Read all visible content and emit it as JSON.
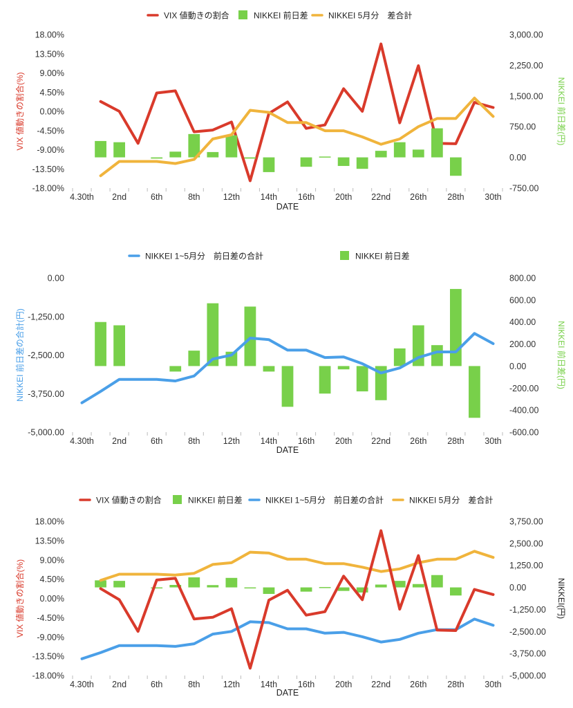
{
  "colors": {
    "vix": "#d93a2b",
    "diff": "#78d04a",
    "cum": "#4a9fe8",
    "total5": "#f0b43c",
    "axis_text": "#333333",
    "tick_line": "#bbbbbb"
  },
  "x_tick_labels": [
    "4.30th",
    "2nd",
    "6th",
    "8th",
    "12th",
    "14th",
    "16th",
    "20th",
    "22nd",
    "26th",
    "28th",
    "30th"
  ],
  "chart_data": [
    {
      "type": "line",
      "legend": [
        "VIX 値動きの割合",
        "NIKKEI 前日差",
        "NIKKEI 5月分　差合計"
      ],
      "xlabel": "DATE",
      "ylabel_left": "VIX 値動きの割合(%)",
      "ylabel_right": "NIKKEI 前日差(円)",
      "yticks_left": [
        "18.00%",
        "13.50%",
        "9.00%",
        "4.50%",
        "0.00%",
        "-4.50%",
        "-9.00%",
        "-13.50%",
        "-18.00%"
      ],
      "yticks_right": [
        "3,000.00",
        "2,250.00",
        "1,500.00",
        "750.00",
        "0.00",
        "-750.00"
      ],
      "ylim_left": [
        -18,
        18
      ],
      "ylim_right": [
        -750,
        3000
      ],
      "x_count": 23,
      "series": [
        {
          "name": "VIX 値動きの割合",
          "kind": "line",
          "axis": "left",
          "color_key": "vix",
          "values": [
            null,
            2.3,
            0,
            -7.5,
            4.3,
            4.8,
            -4.8,
            -4.4,
            -2.5,
            -16.3,
            -0.5,
            2.2,
            -4,
            -3.2,
            5.3,
            0,
            15.8,
            -2.7,
            10.7,
            -7.5,
            -7.6,
            2.1,
            0.9
          ]
        },
        {
          "name": "NIKKEI 前日差",
          "kind": "bar",
          "axis": "right",
          "color_key": "diff",
          "values": [
            null,
            400,
            370,
            null,
            -30,
            140,
            570,
            130,
            540,
            -30,
            -360,
            null,
            -230,
            20,
            -210,
            -280,
            160,
            370,
            190,
            710,
            -450,
            null,
            null
          ]
        },
        {
          "name": "NIKKEI 5月分　差合計",
          "kind": "line",
          "axis": "right",
          "color_key": "total5",
          "values": [
            null,
            -450,
            -100,
            -100,
            -100,
            -150,
            -50,
            450,
            550,
            1150,
            1100,
            850,
            850,
            650,
            650,
            500,
            320,
            450,
            750,
            950,
            950,
            1450,
            1000
          ]
        }
      ]
    },
    {
      "type": "line",
      "legend": [
        "NIKKEI 1~5月分　前日差の合計",
        "NIKKEI 前日差"
      ],
      "xlabel": "DATE",
      "ylabel_left": "NIKKEI 前日差の合計(円)",
      "ylabel_right": "NIKKEI 前日差(円)",
      "yticks_left": [
        "0.00",
        "-1,250.00",
        "-2,500.00",
        "-3,750.00",
        "-5,000.00"
      ],
      "yticks_right": [
        "800.00",
        "600.00",
        "400.00",
        "200.00",
        "0.00",
        "-200.00",
        "-400.00",
        "-600.00"
      ],
      "ylim_left": [
        -5000,
        0
      ],
      "ylim_right": [
        -600,
        800
      ],
      "x_count": 23,
      "series": [
        {
          "name": "NIKKEI 前日差",
          "kind": "bar",
          "axis": "right",
          "color_key": "diff",
          "values": [
            null,
            400,
            370,
            null,
            null,
            -50,
            140,
            570,
            130,
            540,
            -50,
            -370,
            null,
            -250,
            -30,
            -230,
            -310,
            160,
            370,
            190,
            700,
            -470,
            null
          ]
        },
        {
          "name": "NIKKEI 1~5月分　前日差の合計",
          "kind": "line",
          "axis": "left",
          "color_key": "cum",
          "values": [
            -4050,
            -3680,
            -3290,
            -3290,
            -3290,
            -3340,
            -3180,
            -2630,
            -2500,
            -1950,
            -2000,
            -2340,
            -2340,
            -2580,
            -2560,
            -2780,
            -3080,
            -2920,
            -2580,
            -2400,
            -2400,
            -1800,
            -2130
          ]
        }
      ]
    },
    {
      "type": "line",
      "legend": [
        "VIX 値動きの割合",
        "NIKKEI 前日差",
        "NIKKEI 1~5月分　前日差の合計",
        "NIKKEI 5月分　差合計"
      ],
      "xlabel": "DATE",
      "ylabel_left": "VIX 値動きの割合(%)",
      "ylabel_right": "NIKKEI(円)",
      "yticks_left": [
        "18.00%",
        "13.50%",
        "9.00%",
        "4.50%",
        "0.00%",
        "-4.50%",
        "-9.00%",
        "-13.50%",
        "-18.00%"
      ],
      "yticks_right": [
        "3,750.00",
        "2,500.00",
        "1,250.00",
        "0.00",
        "-1,250.00",
        "-2,500.00",
        "-3,750.00",
        "-5,000.00"
      ],
      "ylim_left": [
        -18,
        18
      ],
      "ylim_right": [
        -5000,
        3750
      ],
      "x_count": 23,
      "series": [
        {
          "name": "NIKKEI 前日差",
          "kind": "bar",
          "axis": "right",
          "color_key": "diff",
          "values": [
            null,
            400,
            370,
            null,
            -40,
            140,
            570,
            130,
            540,
            -50,
            -370,
            null,
            -240,
            20,
            -200,
            -290,
            160,
            370,
            190,
            700,
            -460,
            null,
            null
          ]
        },
        {
          "name": "NIKKEI 5月分　差合計",
          "kind": "line",
          "axis": "right",
          "color_key": "total5",
          "values": [
            null,
            400,
            750,
            750,
            750,
            700,
            800,
            1300,
            1400,
            2000,
            1950,
            1600,
            1600,
            1350,
            1350,
            1150,
            900,
            1050,
            1400,
            1600,
            1600,
            2050,
            1700
          ]
        },
        {
          "name": "NIKKEI 1~5月分　前日差の合計",
          "kind": "line",
          "axis": "right",
          "color_key": "cum",
          "values": [
            -4050,
            -3700,
            -3300,
            -3300,
            -3300,
            -3350,
            -3200,
            -2650,
            -2500,
            -1950,
            -2000,
            -2350,
            -2350,
            -2600,
            -2550,
            -2800,
            -3100,
            -2950,
            -2600,
            -2400,
            -2400,
            -1800,
            -2150
          ]
        },
        {
          "name": "VIX 値動きの割合",
          "kind": "line",
          "axis": "left",
          "color_key": "vix",
          "values": [
            null,
            2.3,
            -0.3,
            -7.7,
            4.3,
            4.7,
            -4.8,
            -4.4,
            -2.4,
            -16.3,
            -0.4,
            1.9,
            -3.9,
            -3.1,
            5.2,
            -0.3,
            15.8,
            -2.5,
            10,
            -7.4,
            -7.5,
            2.1,
            0.9
          ]
        }
      ]
    }
  ]
}
